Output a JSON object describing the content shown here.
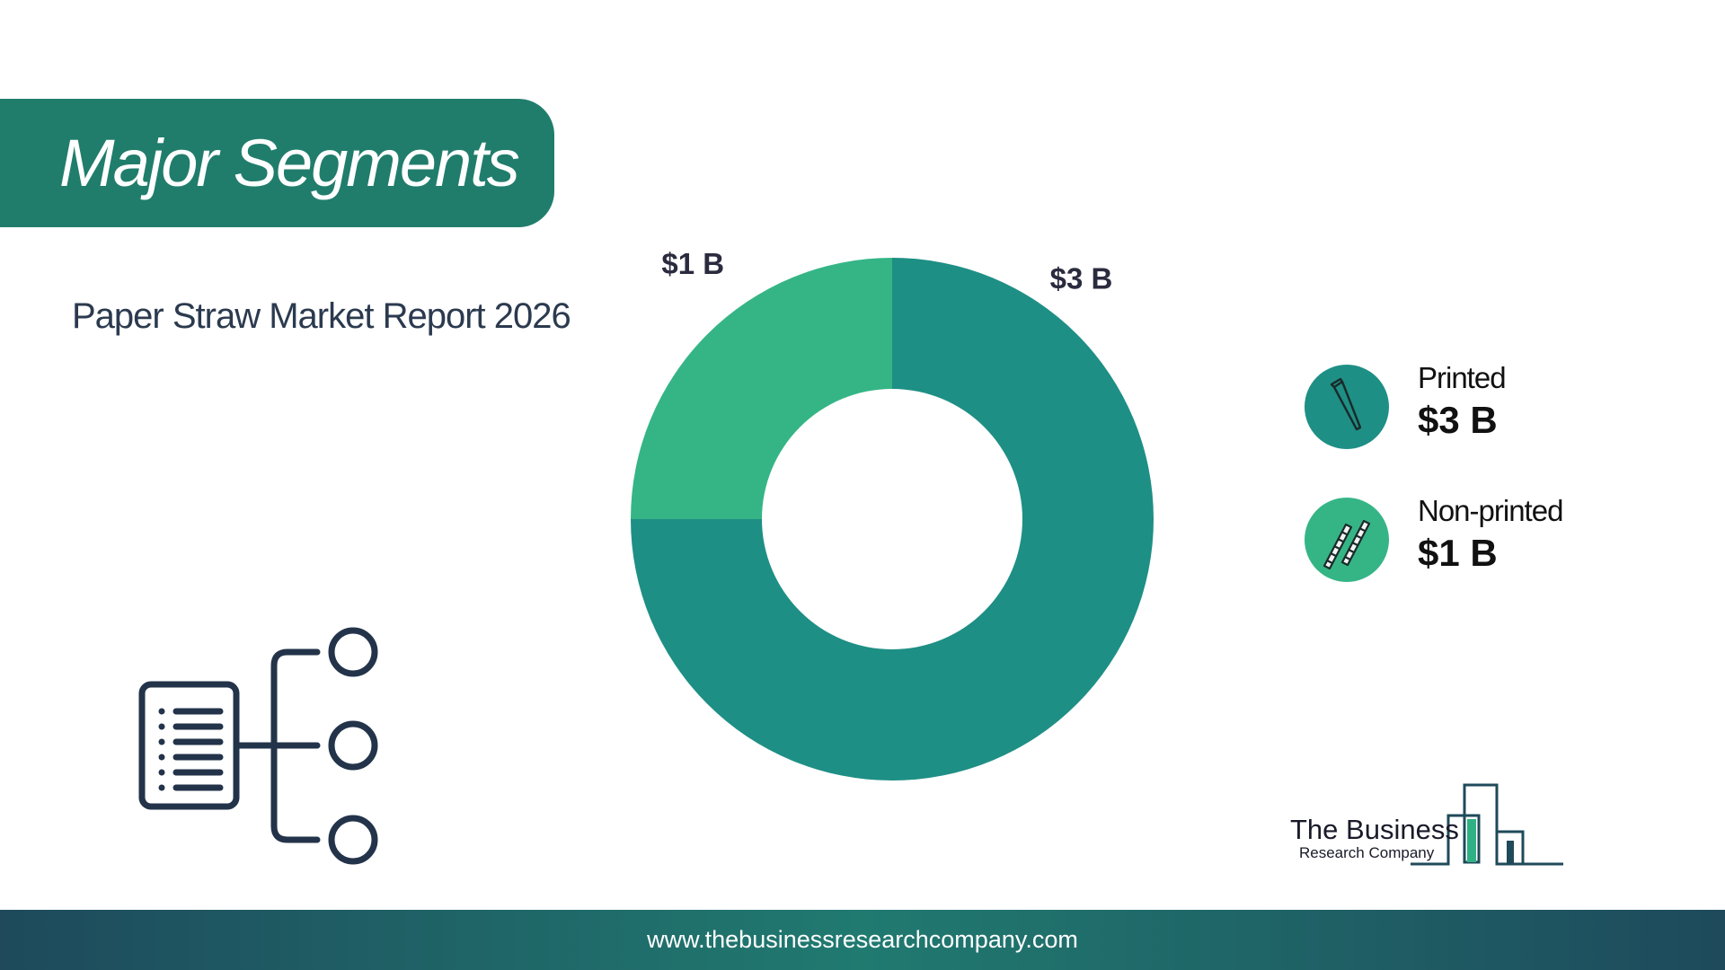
{
  "header": {
    "title": "Major Segments"
  },
  "subtitle": "Paper Straw Market Report 2026",
  "chart_data": {
    "type": "pie",
    "categories": [
      "Printed",
      "Non-printed"
    ],
    "values": [
      3,
      1
    ],
    "data_labels": [
      "$3 B",
      "$1 B"
    ],
    "unit": "$ B",
    "colors": [
      "#1e8f85",
      "#35b586"
    ],
    "legend_placement": "right"
  },
  "legend": {
    "items": [
      {
        "name": "Printed",
        "value": "$3 B",
        "icon": "bent-straw-icon",
        "color": "#1e8f85"
      },
      {
        "name": "Non-printed",
        "value": "$1 B",
        "icon": "striped-straws-icon",
        "color": "#35b586"
      }
    ]
  },
  "logo": {
    "line1": "The Business",
    "line2": "Research Company"
  },
  "footer": {
    "url": "www.thebusinessresearchcompany.com"
  }
}
